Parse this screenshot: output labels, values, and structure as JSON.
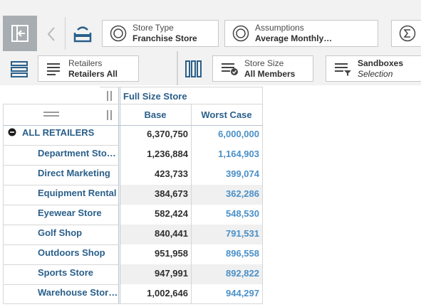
{
  "toolbar": {
    "store_type": {
      "label": "Store Type",
      "value": "Franchise Store"
    },
    "assumptions": {
      "label": "Assumptions",
      "value": "Average Monthly…"
    },
    "sigma_icon": "sigma-icon"
  },
  "toolbar2": {
    "retailers": {
      "label": "Retailers",
      "value": "Retailers All"
    },
    "store_size": {
      "label": "Store Size",
      "value": "All Members"
    },
    "sandboxes": {
      "label": "Sandboxes",
      "value": "Selection"
    }
  },
  "grid": {
    "column_group": "Full Size Store",
    "columns": [
      "Base",
      "Worst Case"
    ],
    "total_row": {
      "label": "ALL RETAILERS",
      "base": "6,370,750",
      "worst": "6,000,000"
    },
    "rows": [
      {
        "label": "Department Stores",
        "base": "1,236,884",
        "worst": "1,164,903"
      },
      {
        "label": "Direct Marketing",
        "base": "423,733",
        "worst": "399,074"
      },
      {
        "label": "Equipment Rental",
        "base": "384,673",
        "worst": "362,286"
      },
      {
        "label": "Eyewear Store",
        "base": "582,424",
        "worst": "548,530"
      },
      {
        "label": "Golf Shop",
        "base": "840,441",
        "worst": "791,531"
      },
      {
        "label": "Outdoors Shop",
        "base": "951,958",
        "worst": "896,558"
      },
      {
        "label": "Sports Store",
        "base": "947,991",
        "worst": "892,822"
      },
      {
        "label": "Warehouse Stores",
        "base": "1,002,646",
        "worst": "944,297"
      }
    ]
  },
  "colors": {
    "header_blue": "#2a5f8a",
    "value_blue": "#4a90c8",
    "toolbar_bg": "#f2f2f2"
  }
}
